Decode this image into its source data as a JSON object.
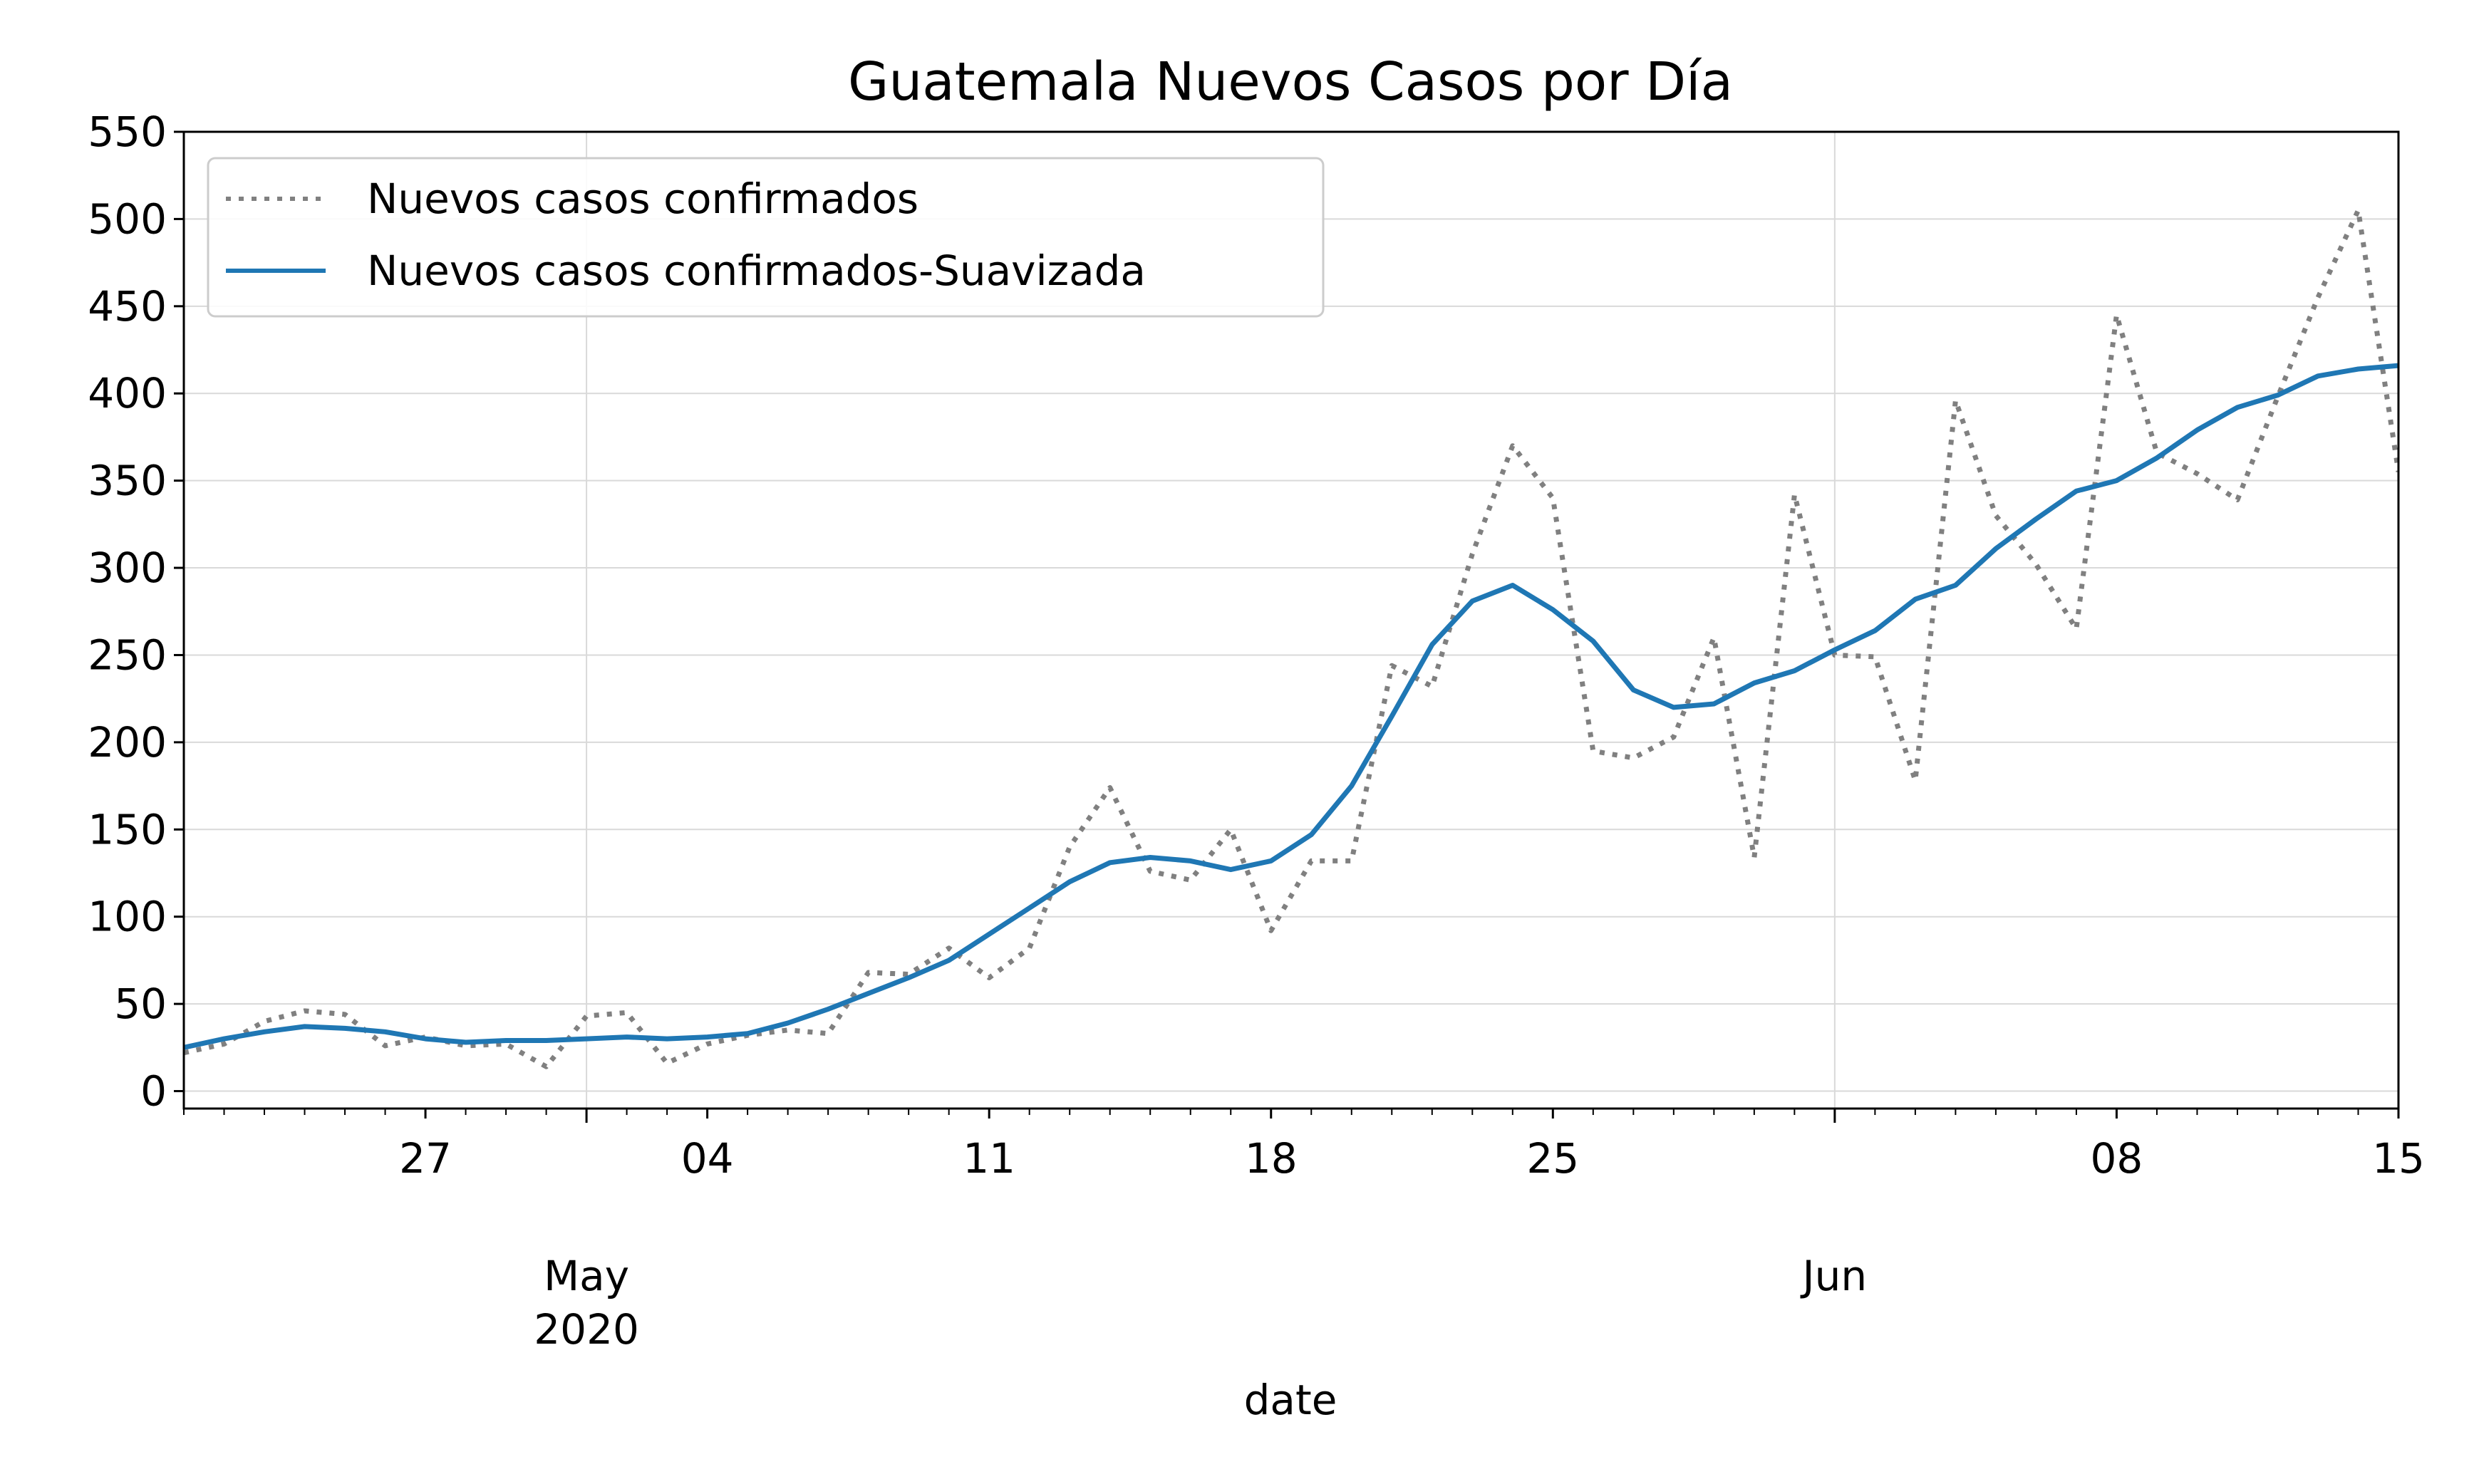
{
  "chart_data": {
    "type": "line",
    "title": "Guatemala Nuevos Casos por Día",
    "xlabel": "date",
    "ylabel": "",
    "ylim": [
      -10,
      550
    ],
    "yticks": [
      0,
      50,
      100,
      150,
      200,
      250,
      300,
      350,
      400,
      450,
      500,
      550
    ],
    "x_range": [
      "2020-04-21",
      "2020-06-15"
    ],
    "x_day_ticks": [
      {
        "date": "2020-04-27",
        "label": "27"
      },
      {
        "date": "2020-05-04",
        "label": "04"
      },
      {
        "date": "2020-05-11",
        "label": "11"
      },
      {
        "date": "2020-05-18",
        "label": "18"
      },
      {
        "date": "2020-05-25",
        "label": "25"
      },
      {
        "date": "2020-06-08",
        "label": "08"
      },
      {
        "date": "2020-06-15",
        "label": "15"
      }
    ],
    "x_month_ticks": [
      {
        "date": "2020-05-01",
        "label": "May",
        "sublabel": "2020"
      },
      {
        "date": "2020-06-01",
        "label": "Jun",
        "sublabel": ""
      }
    ],
    "grid": true,
    "legend_position": "top-left",
    "series": [
      {
        "name": "Nuevos casos confirmados",
        "color": "#808080",
        "style": "dotted",
        "x": [
          "2020-04-21",
          "2020-04-22",
          "2020-04-23",
          "2020-04-24",
          "2020-04-25",
          "2020-04-26",
          "2020-04-27",
          "2020-04-28",
          "2020-04-29",
          "2020-04-30",
          "2020-05-01",
          "2020-05-02",
          "2020-05-03",
          "2020-05-04",
          "2020-05-05",
          "2020-05-06",
          "2020-05-07",
          "2020-05-08",
          "2020-05-09",
          "2020-05-10",
          "2020-05-11",
          "2020-05-12",
          "2020-05-13",
          "2020-05-14",
          "2020-05-15",
          "2020-05-16",
          "2020-05-17",
          "2020-05-18",
          "2020-05-19",
          "2020-05-20",
          "2020-05-21",
          "2020-05-22",
          "2020-05-23",
          "2020-05-24",
          "2020-05-25",
          "2020-05-26",
          "2020-05-27",
          "2020-05-28",
          "2020-05-29",
          "2020-05-30",
          "2020-05-31",
          "2020-06-01",
          "2020-06-02",
          "2020-06-03",
          "2020-06-04",
          "2020-06-05",
          "2020-06-06",
          "2020-06-07",
          "2020-06-08",
          "2020-06-09",
          "2020-06-10",
          "2020-06-11",
          "2020-06-12",
          "2020-06-13",
          "2020-06-14",
          "2020-06-15"
        ],
        "values": [
          22,
          27,
          40,
          46,
          44,
          26,
          31,
          26,
          27,
          14,
          43,
          45,
          16,
          27,
          32,
          35,
          33,
          68,
          67,
          82,
          65,
          82,
          140,
          174,
          126,
          121,
          150,
          92,
          132,
          132,
          244,
          232,
          308,
          370,
          340,
          195,
          191,
          203,
          260,
          134,
          342,
          250,
          249,
          178,
          396,
          330,
          302,
          265,
          445,
          366,
          354,
          339,
          398,
          455,
          505,
          355
        ]
      },
      {
        "name": "Nuevos casos confirmados-Suavizada",
        "color": "#1f77b4",
        "style": "solid",
        "x": [
          "2020-04-21",
          "2020-04-22",
          "2020-04-23",
          "2020-04-24",
          "2020-04-25",
          "2020-04-26",
          "2020-04-27",
          "2020-04-28",
          "2020-04-29",
          "2020-04-30",
          "2020-05-01",
          "2020-05-02",
          "2020-05-03",
          "2020-05-04",
          "2020-05-05",
          "2020-05-06",
          "2020-05-07",
          "2020-05-08",
          "2020-05-09",
          "2020-05-10",
          "2020-05-11",
          "2020-05-12",
          "2020-05-13",
          "2020-05-14",
          "2020-05-15",
          "2020-05-16",
          "2020-05-17",
          "2020-05-18",
          "2020-05-19",
          "2020-05-20",
          "2020-05-21",
          "2020-05-22",
          "2020-05-23",
          "2020-05-24",
          "2020-05-25",
          "2020-05-26",
          "2020-05-27",
          "2020-05-28",
          "2020-05-29",
          "2020-05-30",
          "2020-05-31",
          "2020-06-01",
          "2020-06-02",
          "2020-06-03",
          "2020-06-04",
          "2020-06-05",
          "2020-06-06",
          "2020-06-07",
          "2020-06-08",
          "2020-06-09",
          "2020-06-10",
          "2020-06-11",
          "2020-06-12",
          "2020-06-13",
          "2020-06-14",
          "2020-06-15"
        ],
        "values": [
          25,
          30,
          34,
          37,
          36,
          34,
          30,
          28,
          29,
          29,
          30,
          31,
          30,
          31,
          33,
          39,
          47,
          56,
          65,
          75,
          90,
          105,
          120,
          131,
          134,
          132,
          127,
          132,
          147,
          175,
          215,
          256,
          281,
          290,
          276,
          258,
          230,
          220,
          222,
          234,
          241,
          253,
          264,
          282,
          290,
          311,
          328,
          344,
          350,
          363,
          379,
          392,
          399,
          410,
          414,
          416
        ]
      }
    ]
  }
}
